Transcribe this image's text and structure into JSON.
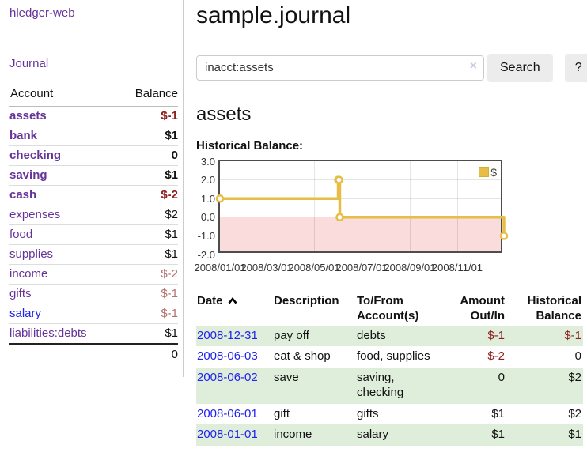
{
  "theme": {
    "purple": "#663399",
    "blue": "#2222ee",
    "neg_strong": "#8e1f1f",
    "neg_muted": "#b27272",
    "row_green": "#dfeeda",
    "chart_pink": "#fbdcdc",
    "zero": "#8b0000",
    "gold": "#e7bd45"
  },
  "sidebar": {
    "brand": "hledger-web",
    "journal_link": "Journal",
    "accounts": {
      "headers": {
        "account": "Account",
        "balance": "Balance"
      },
      "rows": [
        {
          "name": "assets",
          "balance": "$-1"
        },
        {
          "name": "bank",
          "balance": "$1"
        },
        {
          "name": "checking",
          "balance": "0"
        },
        {
          "name": "saving",
          "balance": "$1"
        },
        {
          "name": "cash",
          "balance": "$-2"
        },
        {
          "name": "expenses",
          "balance": "$2"
        },
        {
          "name": "food",
          "balance": "$1"
        },
        {
          "name": "supplies",
          "balance": "$1"
        },
        {
          "name": "income",
          "balance": "$-2"
        },
        {
          "name": "gifts",
          "balance": "$-1"
        },
        {
          "name": "salary",
          "balance": "$-1"
        },
        {
          "name": "liabilities:debts",
          "balance": "$1"
        }
      ],
      "total": "0"
    }
  },
  "header": {
    "title": "sample.journal"
  },
  "search": {
    "query": "inacct:assets",
    "clear_icon": "×",
    "search_label": "Search",
    "help_label": "?"
  },
  "account_page": {
    "heading": "assets",
    "chart_label": "Historical Balance:"
  },
  "chart_data": {
    "type": "line",
    "step": true,
    "title": "Historical Balance",
    "series": [
      {
        "name": "$",
        "color": "#e7bd45",
        "points": [
          [
            "2008-01-01",
            1
          ],
          [
            "2008-06-01",
            2
          ],
          [
            "2008-06-02",
            2
          ],
          [
            "2008-06-03",
            0
          ],
          [
            "2008-12-31",
            -1
          ]
        ]
      }
    ],
    "xlim": [
      "2008-01-01",
      "2008-12-31"
    ],
    "ylim": [
      -2,
      3
    ],
    "yticks": [
      {
        "value": 3,
        "label": "3.0"
      },
      {
        "value": 2,
        "label": "2.0"
      },
      {
        "value": 1,
        "label": "1.0"
      },
      {
        "value": 0,
        "label": "0.0"
      },
      {
        "value": -1,
        "label": "-1.0"
      },
      {
        "value": -2,
        "label": "-2.0"
      }
    ],
    "xticks": [
      {
        "date": "2008-01-01",
        "label": "2008/01/01"
      },
      {
        "date": "2008-03-01",
        "label": "2008/03/01"
      },
      {
        "date": "2008-05-01",
        "label": "2008/05/01"
      },
      {
        "date": "2008-07-01",
        "label": "2008/07/01"
      },
      {
        "date": "2008-09-01",
        "label": "2008/09/01"
      },
      {
        "date": "2008-11-01",
        "label": "2008/11/01"
      }
    ],
    "grid": true,
    "legend_position": "top-right",
    "negative_region": true
  },
  "register": {
    "headers": {
      "date": "Date",
      "description": "Description",
      "accounts": "To/From Account(s)",
      "amount": "Amount Out/In",
      "balance": "Historical Balance"
    },
    "rows": [
      {
        "date": "2008-12-31",
        "description": "pay off",
        "accounts": "debts",
        "amount": "$-1",
        "balance": "$-1"
      },
      {
        "date": "2008-06-03",
        "description": "eat & shop",
        "accounts": "food, supplies",
        "amount": "$-2",
        "balance": "0"
      },
      {
        "date": "2008-06-02",
        "description": "save",
        "accounts": "saving, checking",
        "amount": "0",
        "balance": "$2"
      },
      {
        "date": "2008-06-01",
        "description": "gift",
        "accounts": "gifts",
        "amount": "$1",
        "balance": "$2"
      },
      {
        "date": "2008-01-01",
        "description": "income",
        "accounts": "salary",
        "amount": "$1",
        "balance": "$1"
      }
    ]
  }
}
